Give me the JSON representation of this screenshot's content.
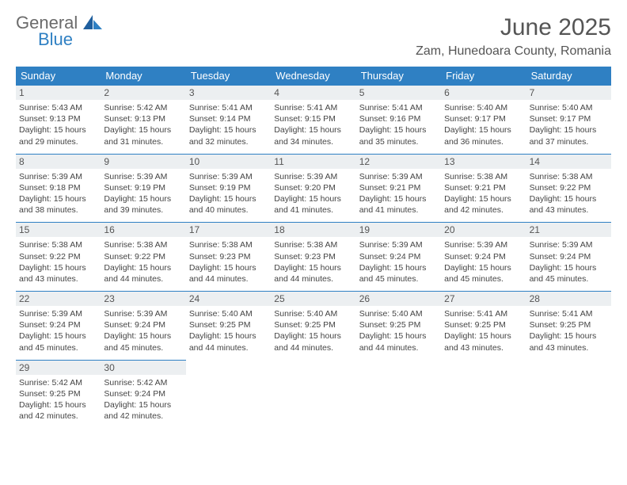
{
  "brand": {
    "general": "General",
    "blue": "Blue"
  },
  "title": "June 2025",
  "location": "Zam, Hunedoara County, Romania",
  "colors": {
    "header_bg": "#2f80c3",
    "header_text": "#ffffff",
    "daynum_bg": "#eceff1",
    "text": "#444444",
    "rule": "#2f80c3"
  },
  "weekdays": [
    "Sunday",
    "Monday",
    "Tuesday",
    "Wednesday",
    "Thursday",
    "Friday",
    "Saturday"
  ],
  "labels": {
    "sunrise": "Sunrise:",
    "sunset": "Sunset:",
    "daylight": "Daylight:"
  },
  "days": [
    {
      "n": "1",
      "sunrise": "5:43 AM",
      "sunset": "9:13 PM",
      "daylight": "15 hours and 29 minutes."
    },
    {
      "n": "2",
      "sunrise": "5:42 AM",
      "sunset": "9:13 PM",
      "daylight": "15 hours and 31 minutes."
    },
    {
      "n": "3",
      "sunrise": "5:41 AM",
      "sunset": "9:14 PM",
      "daylight": "15 hours and 32 minutes."
    },
    {
      "n": "4",
      "sunrise": "5:41 AM",
      "sunset": "9:15 PM",
      "daylight": "15 hours and 34 minutes."
    },
    {
      "n": "5",
      "sunrise": "5:41 AM",
      "sunset": "9:16 PM",
      "daylight": "15 hours and 35 minutes."
    },
    {
      "n": "6",
      "sunrise": "5:40 AM",
      "sunset": "9:17 PM",
      "daylight": "15 hours and 36 minutes."
    },
    {
      "n": "7",
      "sunrise": "5:40 AM",
      "sunset": "9:17 PM",
      "daylight": "15 hours and 37 minutes."
    },
    {
      "n": "8",
      "sunrise": "5:39 AM",
      "sunset": "9:18 PM",
      "daylight": "15 hours and 38 minutes."
    },
    {
      "n": "9",
      "sunrise": "5:39 AM",
      "sunset": "9:19 PM",
      "daylight": "15 hours and 39 minutes."
    },
    {
      "n": "10",
      "sunrise": "5:39 AM",
      "sunset": "9:19 PM",
      "daylight": "15 hours and 40 minutes."
    },
    {
      "n": "11",
      "sunrise": "5:39 AM",
      "sunset": "9:20 PM",
      "daylight": "15 hours and 41 minutes."
    },
    {
      "n": "12",
      "sunrise": "5:39 AM",
      "sunset": "9:21 PM",
      "daylight": "15 hours and 41 minutes."
    },
    {
      "n": "13",
      "sunrise": "5:38 AM",
      "sunset": "9:21 PM",
      "daylight": "15 hours and 42 minutes."
    },
    {
      "n": "14",
      "sunrise": "5:38 AM",
      "sunset": "9:22 PM",
      "daylight": "15 hours and 43 minutes."
    },
    {
      "n": "15",
      "sunrise": "5:38 AM",
      "sunset": "9:22 PM",
      "daylight": "15 hours and 43 minutes."
    },
    {
      "n": "16",
      "sunrise": "5:38 AM",
      "sunset": "9:22 PM",
      "daylight": "15 hours and 44 minutes."
    },
    {
      "n": "17",
      "sunrise": "5:38 AM",
      "sunset": "9:23 PM",
      "daylight": "15 hours and 44 minutes."
    },
    {
      "n": "18",
      "sunrise": "5:38 AM",
      "sunset": "9:23 PM",
      "daylight": "15 hours and 44 minutes."
    },
    {
      "n": "19",
      "sunrise": "5:39 AM",
      "sunset": "9:24 PM",
      "daylight": "15 hours and 45 minutes."
    },
    {
      "n": "20",
      "sunrise": "5:39 AM",
      "sunset": "9:24 PM",
      "daylight": "15 hours and 45 minutes."
    },
    {
      "n": "21",
      "sunrise": "5:39 AM",
      "sunset": "9:24 PM",
      "daylight": "15 hours and 45 minutes."
    },
    {
      "n": "22",
      "sunrise": "5:39 AM",
      "sunset": "9:24 PM",
      "daylight": "15 hours and 45 minutes."
    },
    {
      "n": "23",
      "sunrise": "5:39 AM",
      "sunset": "9:24 PM",
      "daylight": "15 hours and 45 minutes."
    },
    {
      "n": "24",
      "sunrise": "5:40 AM",
      "sunset": "9:25 PM",
      "daylight": "15 hours and 44 minutes."
    },
    {
      "n": "25",
      "sunrise": "5:40 AM",
      "sunset": "9:25 PM",
      "daylight": "15 hours and 44 minutes."
    },
    {
      "n": "26",
      "sunrise": "5:40 AM",
      "sunset": "9:25 PM",
      "daylight": "15 hours and 44 minutes."
    },
    {
      "n": "27",
      "sunrise": "5:41 AM",
      "sunset": "9:25 PM",
      "daylight": "15 hours and 43 minutes."
    },
    {
      "n": "28",
      "sunrise": "5:41 AM",
      "sunset": "9:25 PM",
      "daylight": "15 hours and 43 minutes."
    },
    {
      "n": "29",
      "sunrise": "5:42 AM",
      "sunset": "9:25 PM",
      "daylight": "15 hours and 42 minutes."
    },
    {
      "n": "30",
      "sunrise": "5:42 AM",
      "sunset": "9:24 PM",
      "daylight": "15 hours and 42 minutes."
    }
  ]
}
